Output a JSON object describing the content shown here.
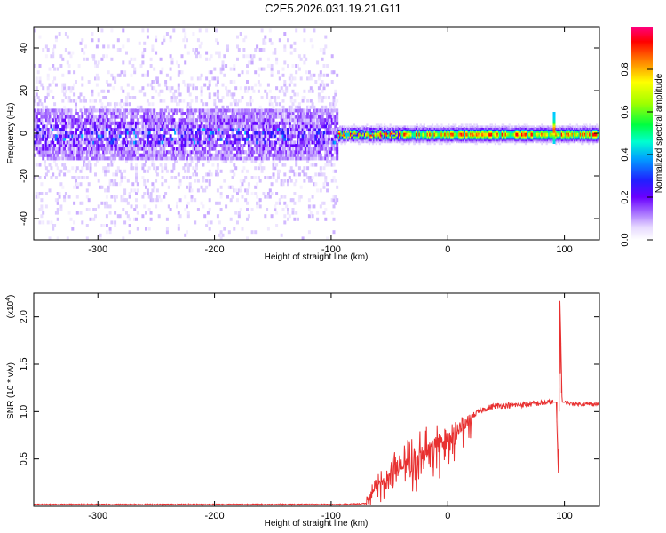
{
  "figure_title": "C2E5.2026.031.19.21.G11",
  "chart_data": [
    {
      "type": "heatmap",
      "title": "C2E5.2026.031.19.21.G11",
      "xlabel": "Height of straight line (km)",
      "ylabel": "Frequency (Hz)",
      "xlim": [
        -355,
        130
      ],
      "ylim": [
        -50,
        50
      ],
      "xticks": [
        -300,
        -200,
        -100,
        0,
        100
      ],
      "yticks": [
        -40,
        -20,
        0,
        20,
        40
      ],
      "colorbar": {
        "label": "Normalized spectral amplitude",
        "range": [
          0.0,
          1.0
        ],
        "ticks": [
          0.0,
          0.2,
          0.4,
          0.6,
          0.8
        ],
        "colors": [
          "#ffffff",
          "#d9c6ff",
          "#a46cff",
          "#6a00ff",
          "#2020ff",
          "#00d0ff",
          "#00ff80",
          "#80ff00",
          "#ffff00",
          "#ff8000",
          "#ff0000",
          "#ff0080"
        ]
      },
      "regions": [
        {
          "x_range": [
            -355,
            -95
          ],
          "band": "broad noise",
          "freq_spread_hz": 50,
          "core_band_hz": [
            -12,
            12
          ],
          "max_amplitude": 0.3
        },
        {
          "x_range": [
            -95,
            130
          ],
          "band": "narrow signal near 0 Hz",
          "core_band_hz": [
            -5,
            5
          ],
          "max_amplitude": 1.0
        }
      ],
      "features": [
        {
          "x": 90,
          "freq_hz": 2,
          "desc": "spike"
        }
      ]
    },
    {
      "type": "line",
      "xlabel": "Height of straight line (km)",
      "ylabel": "SNR (10 * v/v)",
      "yscale_label": "(x10",
      "yscale_exp": "4",
      "xlim": [
        -355,
        130
      ],
      "ylim": [
        0,
        2.25
      ],
      "xticks": [
        -300,
        -200,
        -100,
        0,
        100
      ],
      "yticks": [
        0.5,
        1.0,
        1.5,
        2.0
      ],
      "series": [
        {
          "name": "SNR",
          "color": "#e83030",
          "points": [
            [
              -355,
              0.02
            ],
            [
              -100,
              0.02
            ],
            [
              -90,
              0.02
            ],
            [
              -70,
              0.03
            ],
            [
              -65,
              0.13
            ],
            [
              -60,
              0.22
            ],
            [
              -55,
              0.3
            ],
            [
              -45,
              0.4
            ],
            [
              -35,
              0.45
            ],
            [
              -25,
              0.52
            ],
            [
              -15,
              0.6
            ],
            [
              -5,
              0.68
            ],
            [
              0,
              0.72
            ],
            [
              5,
              0.74
            ],
            [
              10,
              0.85
            ],
            [
              20,
              0.95
            ],
            [
              30,
              1.02
            ],
            [
              40,
              1.06
            ],
            [
              60,
              1.07
            ],
            [
              80,
              1.09
            ],
            [
              90,
              1.1
            ],
            [
              93,
              1.1
            ],
            [
              95,
              0.25
            ],
            [
              96,
              2.25
            ],
            [
              97,
              1.7
            ],
            [
              98,
              1.1
            ],
            [
              110,
              1.08
            ],
            [
              130,
              1.08
            ]
          ]
        }
      ]
    }
  ]
}
